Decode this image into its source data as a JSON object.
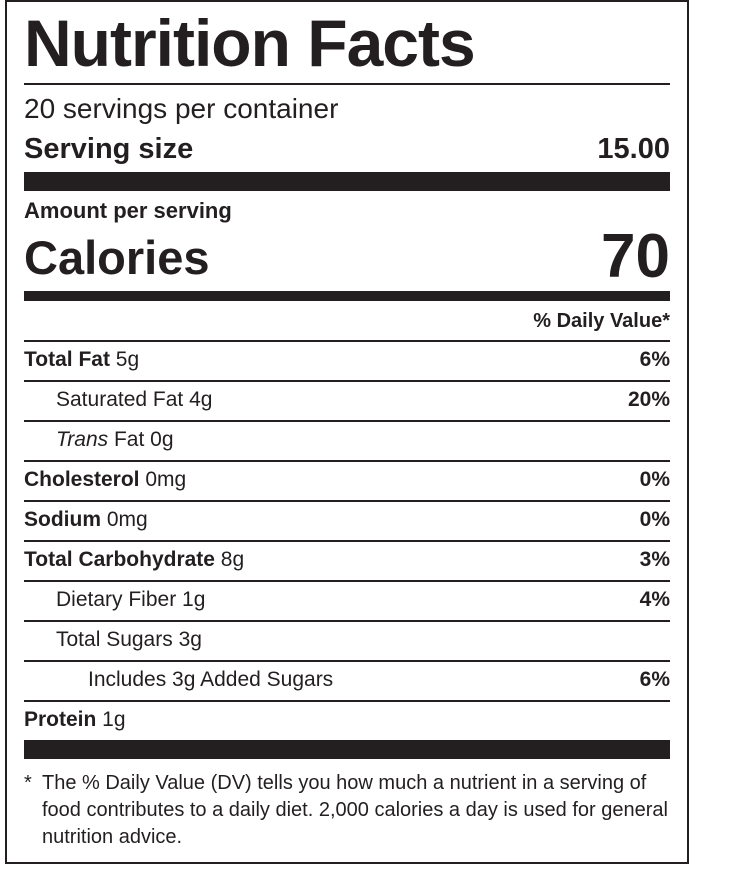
{
  "title": "Nutrition Facts",
  "servings_per_container": "20 servings per container",
  "serving_size": {
    "label": "Serving size",
    "value": "15.00"
  },
  "amount_per_serving": "Amount per serving",
  "calories": {
    "label": "Calories",
    "value": "70"
  },
  "daily_value_header": "% Daily Value*",
  "nutrients": [
    {
      "name": "Total Fat",
      "amount": " 5g",
      "dv": "6%"
    },
    {
      "name": "Saturated Fat 4g",
      "dv": "20%"
    },
    {
      "name_italic": "Trans",
      "name": " Fat 0g",
      "dv": ""
    },
    {
      "name": "Cholesterol",
      "amount": " 0mg",
      "dv": "0%"
    },
    {
      "name": "Sodium",
      "amount": " 0mg",
      "dv": "0%"
    },
    {
      "name": "Total Carbohydrate",
      "amount": " 8g",
      "dv": "3%"
    },
    {
      "name": "Dietary Fiber 1g",
      "dv": "4%"
    },
    {
      "name": "Total Sugars 3g",
      "dv": ""
    },
    {
      "name": "Includes 3g Added Sugars",
      "dv": "6%"
    },
    {
      "name": "Protein",
      "amount": " 1g"
    }
  ],
  "footnote": {
    "star": "*",
    "text": "The % Daily Value (DV) tells you how much a nutrient in a serving of food contributes to a daily diet. 2,000 calories a day is used for general nutrition advice."
  }
}
